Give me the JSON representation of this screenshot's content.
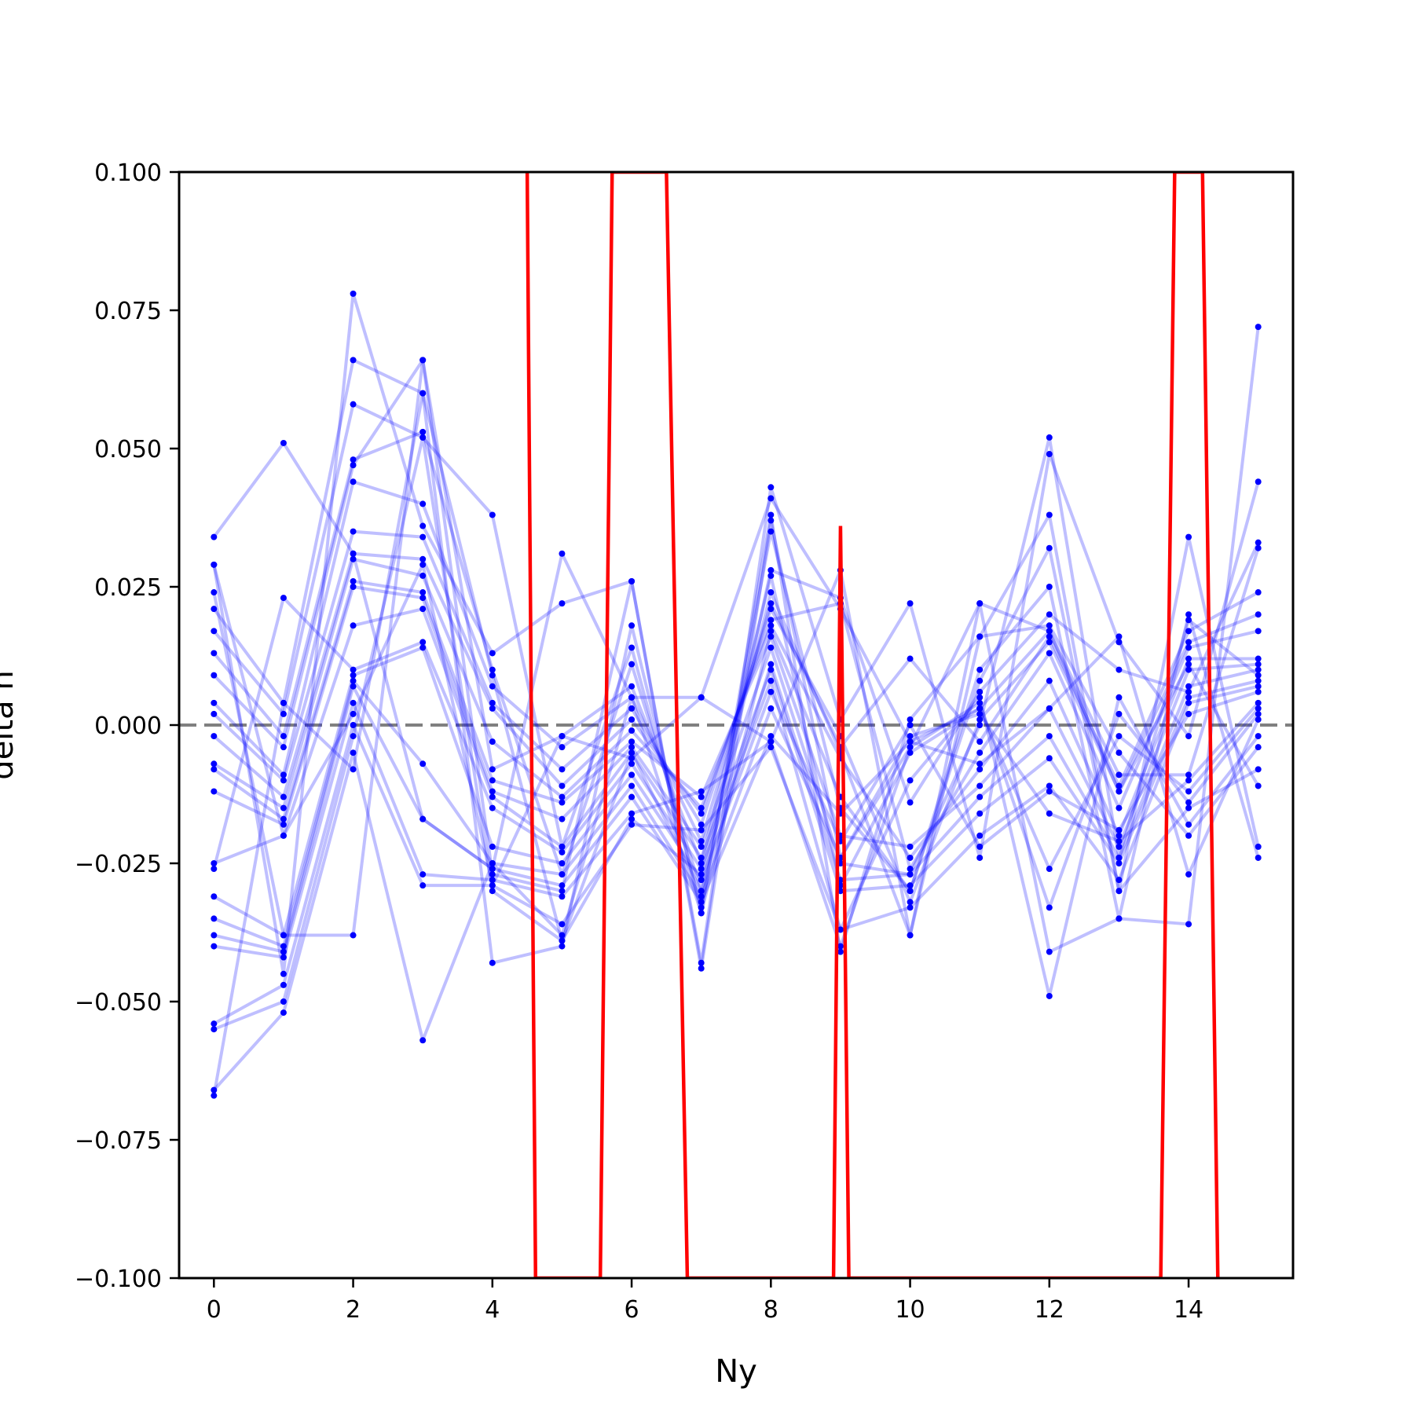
{
  "chart_data": {
    "type": "line",
    "title": "",
    "xlabel": "Ny",
    "ylabel": "delta h",
    "xlim": [
      -0.5,
      15.5
    ],
    "ylim": [
      -0.1,
      0.1
    ],
    "xticks": [
      0,
      2,
      4,
      6,
      8,
      10,
      12,
      14
    ],
    "xtick_labels": [
      "0",
      "2",
      "4",
      "6",
      "8",
      "10",
      "12",
      "14"
    ],
    "yticks": [
      0.1,
      0.075,
      0.05,
      0.025,
      0.0,
      -0.025,
      -0.05,
      -0.075,
      -0.1
    ],
    "ytick_labels": [
      "0.100",
      "0.075",
      "0.050",
      "0.025",
      "0.000",
      "−0.025",
      "−0.050",
      "−0.075",
      "−0.100"
    ],
    "x": [
      0,
      1,
      2,
      3,
      4,
      5,
      6,
      7,
      8,
      9,
      10,
      11,
      12,
      13,
      14,
      15
    ],
    "reference_line": {
      "y": 0.0,
      "style": "dashed",
      "color": "#808080"
    },
    "series_color": "#0000ff",
    "series": [
      {
        "values": [
          0.034,
          0.051,
          0.031,
          -0.017,
          -0.026,
          0.031,
          0.005,
          0.005,
          -0.003,
          0.028,
          -0.038,
          0.022,
          -0.041,
          -0.035,
          -0.036,
          0.072
        ]
      },
      {
        "values": [
          0.029,
          -0.045,
          0.078,
          0.036,
          0.013,
          0.022,
          0.026,
          -0.043,
          0.043,
          0.001,
          0.022,
          -0.024,
          0.049,
          0.015,
          -0.002,
          0.044
        ]
      },
      {
        "values": [
          0.021,
          0.004,
          0.066,
          0.06,
          -0.043,
          -0.04,
          0.018,
          -0.034,
          0.038,
          -0.041,
          0.001,
          0.016,
          0.038,
          -0.03,
          0.034,
          -0.022
        ]
      },
      {
        "values": [
          0.017,
          0.002,
          0.058,
          0.052,
          0.038,
          -0.022,
          0.014,
          -0.033,
          0.035,
          -0.015,
          -0.03,
          0.01,
          0.025,
          -0.035,
          0.02,
          -0.024
        ]
      },
      {
        "values": [
          0.013,
          -0.002,
          0.048,
          0.053,
          0.01,
          -0.027,
          0.011,
          -0.03,
          0.028,
          0.023,
          -0.014,
          0.006,
          0.02,
          0.01,
          0.006,
          0.033
        ]
      },
      {
        "values": [
          0.009,
          -0.004,
          0.047,
          0.066,
          -0.008,
          -0.002,
          0.007,
          -0.025,
          0.027,
          -0.029,
          -0.005,
          0.003,
          0.017,
          -0.009,
          -0.009,
          0.032
        ]
      },
      {
        "values": [
          0.004,
          -0.009,
          0.044,
          0.04,
          0.007,
          -0.004,
          0.005,
          -0.021,
          0.022,
          -0.004,
          0.012,
          -0.003,
          0.016,
          -0.011,
          0.017,
          0.024
        ]
      },
      {
        "values": [
          0.002,
          -0.01,
          0.035,
          0.034,
          0.004,
          -0.008,
          0.003,
          -0.018,
          0.021,
          -0.002,
          -0.032,
          0.001,
          0.015,
          -0.012,
          0.015,
          0.02
        ]
      },
      {
        "values": [
          -0.002,
          -0.013,
          0.031,
          0.03,
          0.003,
          -0.011,
          0.001,
          -0.016,
          0.019,
          0.022,
          -0.026,
          -0.005,
          0.013,
          -0.015,
          0.014,
          0.017
        ]
      },
      {
        "values": [
          -0.007,
          -0.015,
          0.03,
          0.027,
          -0.003,
          -0.013,
          -0.001,
          -0.015,
          0.018,
          -0.006,
          -0.024,
          -0.008,
          0.008,
          -0.02,
          0.012,
          0.012
        ]
      },
      {
        "values": [
          -0.008,
          -0.017,
          0.026,
          0.024,
          -0.01,
          -0.014,
          -0.003,
          -0.013,
          0.016,
          -0.02,
          -0.022,
          -0.011,
          0.003,
          -0.022,
          0.01,
          0.011
        ]
      },
      {
        "values": [
          -0.012,
          -0.018,
          0.025,
          0.023,
          -0.012,
          -0.017,
          -0.004,
          -0.022,
          0.014,
          -0.025,
          -0.027,
          -0.013,
          -0.002,
          -0.024,
          0.007,
          0.01
        ]
      },
      {
        "values": [
          -0.025,
          -0.02,
          0.018,
          0.021,
          -0.013,
          -0.022,
          -0.005,
          -0.024,
          0.01,
          -0.03,
          -0.029,
          -0.016,
          -0.006,
          -0.025,
          0.005,
          0.008
        ]
      },
      {
        "values": [
          -0.026,
          0.023,
          0.01,
          0.015,
          -0.015,
          -0.023,
          -0.007,
          -0.026,
          0.008,
          -0.037,
          -0.033,
          -0.02,
          -0.011,
          -0.028,
          0.004,
          0.007
        ]
      },
      {
        "values": [
          -0.031,
          -0.038,
          0.009,
          0.014,
          -0.022,
          -0.025,
          -0.009,
          -0.028,
          0.006,
          -0.021,
          0.0,
          -0.022,
          -0.012,
          -0.019,
          0.002,
          0.006
        ]
      },
      {
        "values": [
          -0.035,
          -0.04,
          0.008,
          -0.007,
          -0.025,
          -0.027,
          -0.011,
          -0.031,
          0.003,
          -0.024,
          -0.002,
          0.002,
          -0.016,
          -0.021,
          -0.01,
          0.004
        ]
      },
      {
        "values": [
          -0.038,
          -0.041,
          0.007,
          -0.017,
          -0.026,
          -0.029,
          -0.013,
          -0.032,
          -0.002,
          -0.016,
          -0.003,
          0.003,
          -0.026,
          -0.002,
          -0.012,
          0.003
        ]
      },
      {
        "values": [
          -0.04,
          -0.042,
          0.004,
          -0.027,
          -0.028,
          -0.031,
          -0.016,
          -0.012,
          -0.003,
          -0.04,
          -0.004,
          0.004,
          -0.033,
          0.002,
          -0.014,
          0.002
        ]
      },
      {
        "values": [
          -0.054,
          -0.047,
          0.0,
          -0.029,
          -0.029,
          -0.036,
          -0.018,
          -0.019,
          -0.004,
          -0.037,
          -0.01,
          0.005,
          -0.049,
          0.005,
          -0.018,
          -0.002
        ]
      },
      {
        "values": [
          -0.055,
          -0.05,
          -0.002,
          0.052,
          -0.03,
          -0.039,
          -0.017,
          -0.027,
          0.024,
          -0.005,
          -0.038,
          0.016,
          0.018,
          -0.005,
          -0.02,
          -0.004
        ]
      },
      {
        "values": [
          -0.066,
          -0.052,
          -0.005,
          -0.057,
          -0.025,
          -0.038,
          0.005,
          -0.034,
          0.017,
          -0.013,
          -0.03,
          0.008,
          0.032,
          -0.03,
          -0.015,
          -0.008
        ]
      },
      {
        "values": [
          -0.067,
          0.004,
          -0.008,
          0.06,
          0.009,
          -0.039,
          -0.005,
          -0.03,
          0.011,
          -0.028,
          -0.027,
          0.0,
          0.052,
          -0.024,
          0.019,
          0.009
        ]
      },
      {
        "values": [
          0.024,
          -0.038,
          -0.038,
          0.066,
          -0.027,
          -0.03,
          0.026,
          -0.044,
          0.037,
          -0.024,
          -0.004,
          0.022,
          0.017,
          -0.012,
          0.011,
          -0.011
        ]
      },
      {
        "values": [
          0.029,
          -0.02,
          0.002,
          0.029,
          -0.029,
          -0.002,
          -0.006,
          0.005,
          0.041,
          0.021,
          -0.003,
          -0.007,
          0.003,
          0.016,
          -0.027,
          0.001
        ]
      }
    ],
    "red_curve": {
      "color": "#ff0000",
      "points": [
        [
          4.5,
          0.1
        ],
        [
          4.62,
          -0.1
        ],
        [
          5.55,
          -0.1
        ],
        [
          5.72,
          0.1
        ],
        [
          6.5,
          0.1
        ],
        [
          6.8,
          -0.1
        ],
        [
          8.9,
          -0.1
        ],
        [
          9.0,
          0.036
        ],
        [
          9.12,
          -0.1
        ],
        [
          13.6,
          -0.1
        ],
        [
          13.8,
          0.1
        ],
        [
          14.2,
          0.1
        ],
        [
          14.42,
          -0.1
        ]
      ]
    }
  }
}
